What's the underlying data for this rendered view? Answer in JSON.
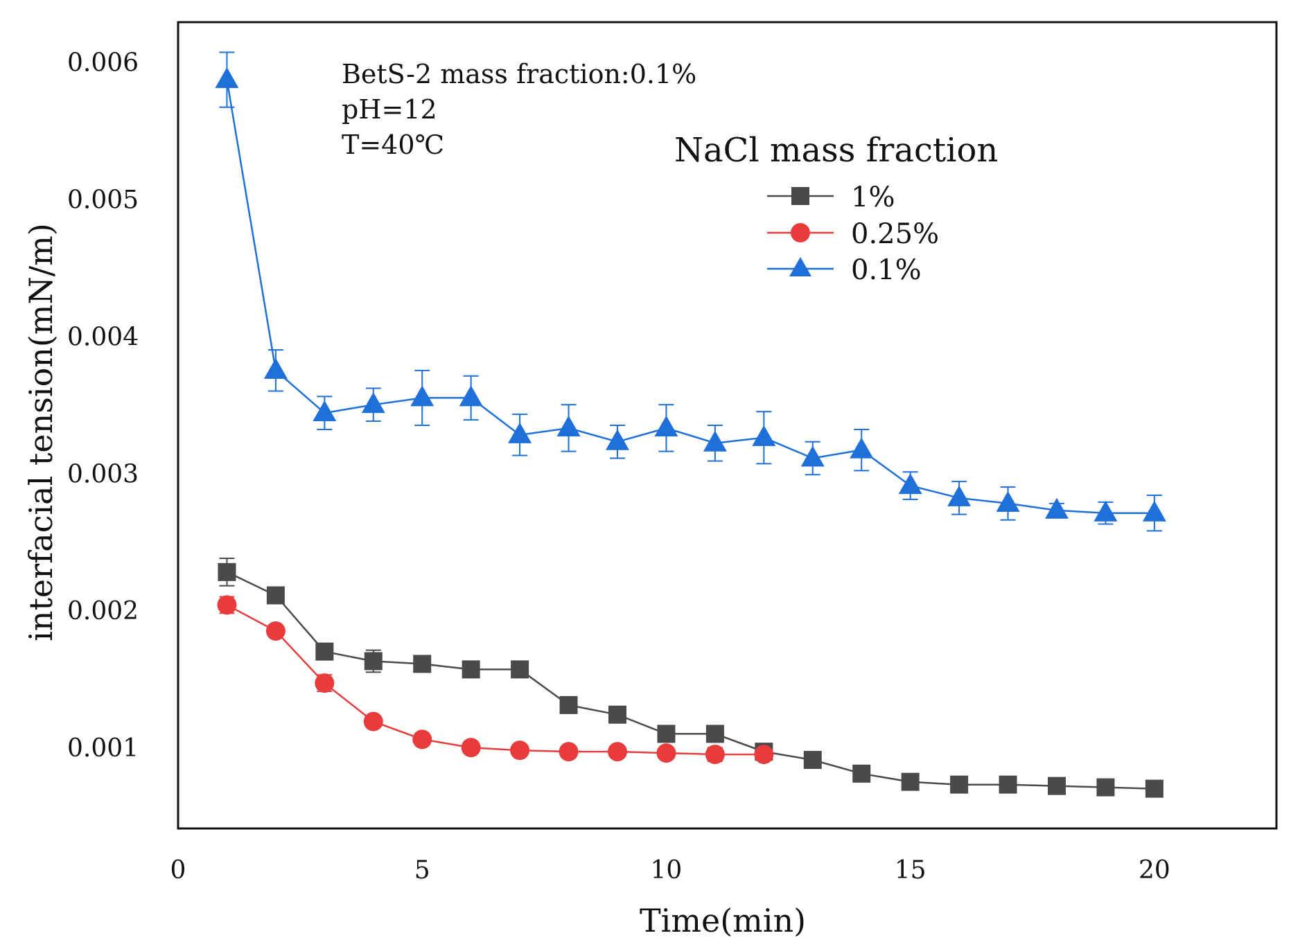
{
  "chart_data": {
    "type": "line",
    "title": "",
    "xlabel": "Time(min)",
    "ylabel": "interfacial tension(mN/m)",
    "xlim": [
      0,
      22.5
    ],
    "ylim": [
      0.00041,
      0.00629
    ],
    "x_ticks": [
      0,
      5,
      10,
      15,
      20
    ],
    "x_tick_labels": [
      "0",
      "5",
      "10",
      "15",
      "20"
    ],
    "y_ticks": [
      0.001,
      0.002,
      0.003,
      0.004,
      0.005,
      0.006
    ],
    "y_tick_labels": [
      "0.001",
      "0.002",
      "0.003",
      "0.004",
      "0.005",
      "0.006"
    ],
    "grid": false,
    "annotations": [
      "BetS-2 mass fraction:0.1%",
      "pH=12",
      "T=40℃"
    ],
    "legend": {
      "title": "NaCl mass fraction",
      "position": "top-right",
      "entries": [
        "1%",
        "0.25%",
        "0.1%"
      ]
    },
    "series": [
      {
        "name": "1%",
        "color": "#4a4a4a",
        "marker": "square",
        "x": [
          1,
          2,
          3,
          4,
          5,
          6,
          7,
          8,
          9,
          10,
          11,
          12,
          13,
          14,
          15,
          16,
          17,
          18,
          19,
          20
        ],
        "values": [
          0.00228,
          0.00211,
          0.0017,
          0.00163,
          0.00161,
          0.00157,
          0.00157,
          0.00131,
          0.00124,
          0.0011,
          0.0011,
          0.00097,
          0.00091,
          0.00081,
          0.00075,
          0.00073,
          0.00073,
          0.00072,
          0.00071,
          0.0007
        ],
        "errors": [
          0.0001,
          4e-05,
          4e-05,
          8e-05,
          4e-05,
          3e-05,
          3e-05,
          3e-05,
          3e-05,
          3e-05,
          3e-05,
          3e-05,
          3e-05,
          3e-05,
          3e-05,
          3e-05,
          3e-05,
          3e-05,
          3e-05,
          3e-05
        ]
      },
      {
        "name": "0.25%",
        "color": "#e83c3c",
        "marker": "circle",
        "x": [
          1,
          2,
          3,
          4,
          5,
          6,
          7,
          8,
          9,
          10,
          11,
          12
        ],
        "values": [
          0.00204,
          0.00185,
          0.00147,
          0.00119,
          0.00106,
          0.001,
          0.00098,
          0.00097,
          0.00097,
          0.00096,
          0.00095,
          0.00095
        ],
        "errors": [
          6e-05,
          3e-05,
          6e-05,
          3e-05,
          3e-05,
          3e-05,
          3e-05,
          3e-05,
          3e-05,
          3e-05,
          5e-05,
          4e-05
        ]
      },
      {
        "name": "0.1%",
        "color": "#1f6fd8",
        "marker": "triangle",
        "x": [
          1,
          2,
          3,
          4,
          5,
          6,
          7,
          8,
          9,
          10,
          11,
          12,
          13,
          14,
          15,
          16,
          17,
          18,
          19,
          20
        ],
        "values": [
          0.00587,
          0.00375,
          0.00344,
          0.0035,
          0.00355,
          0.00355,
          0.00328,
          0.00333,
          0.00323,
          0.00333,
          0.00322,
          0.00326,
          0.00311,
          0.00317,
          0.00291,
          0.00282,
          0.00278,
          0.00273,
          0.00271,
          0.00271
        ],
        "errors": [
          0.0002,
          0.00015,
          0.00012,
          0.00012,
          0.0002,
          0.00016,
          0.00015,
          0.00017,
          0.00012,
          0.00017,
          0.00013,
          0.00019,
          0.00012,
          0.00015,
          0.0001,
          0.00012,
          0.00012,
          5e-05,
          8e-05,
          0.00013
        ]
      }
    ]
  }
}
